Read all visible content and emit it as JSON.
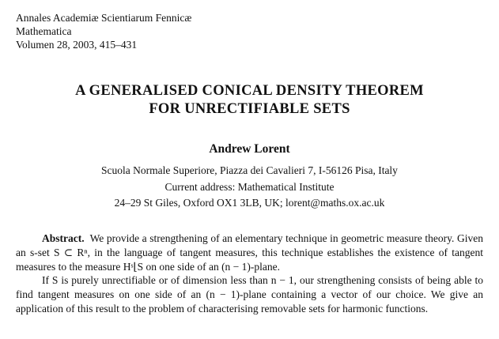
{
  "header": {
    "journal": "Annales Academiæ Scientiarum Fennicæ",
    "series": "Mathematica",
    "volume": "Volumen 28, 2003, 415–431"
  },
  "title": {
    "line1": "A GENERALISED CONICAL DENSITY THEOREM",
    "line2": "FOR UNRECTIFIABLE SETS"
  },
  "author": "Andrew Lorent",
  "affiliation": [
    "Scuola Normale Superiore, Piazza dei Cavalieri 7, I-56126 Pisa, Italy",
    "Current address: Mathematical Institute",
    "24–29 St Giles, Oxford OX1 3LB, UK; lorent@maths.ox.ac.uk"
  ],
  "abstract": {
    "label": "Abstract.",
    "paragraphs": [
      "We provide a strengthening of an elementary technique in geometric measure theory. Given an s-set S ⊂ Rⁿ, in the language of tangent measures, this technique establishes the existence of tangent measures to the measure Hˢ⌊S on one side of an (n − 1)-plane.",
      "If S is purely unrectifiable or of dimension less than n − 1, our strengthening consists of being able to find tangent measures on one side of an (n − 1)-plane containing a vector of our choice. We give an application of this result to the problem of characterising removable sets for harmonic functions."
    ]
  }
}
